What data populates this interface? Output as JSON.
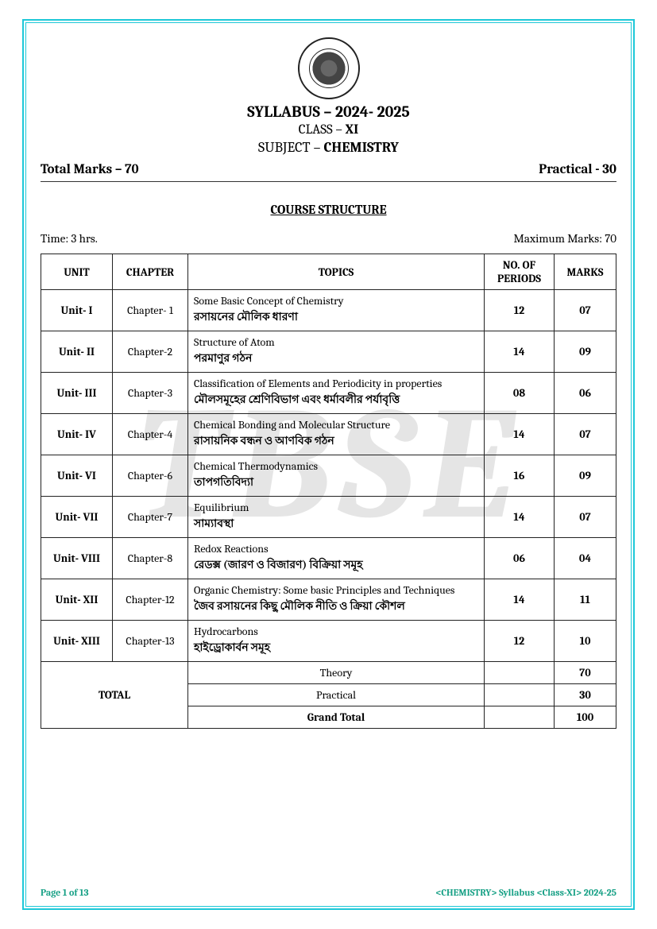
{
  "header": {
    "syllabus": "SYLLABUS – 2024- 2025",
    "class_prefix": "CLASS – ",
    "class_value": "XI",
    "subject_prefix": "SUBJECT – ",
    "subject_value": "CHEMISTRY"
  },
  "marks_row": {
    "total": "Total Marks – 70",
    "practical": "Practical - 30"
  },
  "course_title": "COURSE STRUCTURE",
  "time_row": {
    "time": "Time: 3 hrs.",
    "max": "Maximum Marks: 70"
  },
  "table": {
    "headers": {
      "unit": "UNIT",
      "chapter": "CHAPTER",
      "topics": "TOPICS",
      "periods": "NO. OF PERIODS",
      "marks": "MARKS"
    },
    "rows": [
      {
        "unit": "Unit- I",
        "chapter": "Chapter- 1",
        "topic_en": "Some Basic Concept of Chemistry",
        "topic_bn": "রসায়নের মৌলিক ধারণা",
        "periods": "12",
        "marks": "07"
      },
      {
        "unit": "Unit- II",
        "chapter": "Chapter-2",
        "topic_en": "Structure of Atom",
        "topic_bn": "পরমাণুর গঠন",
        "periods": "14",
        "marks": "09"
      },
      {
        "unit": "Unit- III",
        "chapter": "Chapter-3",
        "topic_en": "Classification of Elements and Periodicity in properties",
        "topic_bn": "মৌলসমূহের শ্রেণিবিভাগ এবং ধর্মাবলীর পর্যাবৃত্তি",
        "periods": "08",
        "marks": "06"
      },
      {
        "unit": "Unit- IV",
        "chapter": "Chapter-4",
        "topic_en": "Chemical Bonding and Molecular Structure",
        "topic_bn": "রাসায়নিক বন্ধন ও আণবিক গঠন",
        "periods": "14",
        "marks": "07"
      },
      {
        "unit": "Unit- VI",
        "chapter": "Chapter-6",
        "topic_en": "Chemical Thermodynamics",
        "topic_bn": "তাপগতিবিদ্যা",
        "periods": "16",
        "marks": "09"
      },
      {
        "unit": "Unit- VII",
        "chapter": "Chapter-7",
        "topic_en": "Equilibrium",
        "topic_bn": "সাম্যাবস্থা",
        "periods": "14",
        "marks": "07"
      },
      {
        "unit": "Unit- VIII",
        "chapter": "Chapter-8",
        "topic_en": "Redox Reactions",
        "topic_bn": "রেডক্স (জারণ ও বিজারণ) বিক্রিয়া সমূহ",
        "periods": "06",
        "marks": "04"
      },
      {
        "unit": "Unit- XII",
        "chapter": "Chapter-12",
        "topic_en": "Organic Chemistry: Some basic Principles and Techniques",
        "topic_bn": "জৈব রসায়নের কিছু মৌলিক নীতি ও ক্রিয়া কৌশল",
        "periods": "14",
        "marks": "11"
      },
      {
        "unit": "Unit- XIII",
        "chapter": "Chapter-13",
        "topic_en": "Hydrocarbons",
        "topic_bn": "হাইড্রোকার্বন সমূহ",
        "periods": "12",
        "marks": "10"
      }
    ],
    "totals": {
      "label": "TOTAL",
      "theory_label": "Theory",
      "theory_marks": "70",
      "practical_label": "Practical",
      "practical_marks": "30",
      "grand_label": "Grand Total",
      "grand_marks": "100"
    }
  },
  "footer": {
    "page": "Page 1 of 13",
    "right": "<CHEMISTRY> Syllabus <Class-XI> 2024-25"
  },
  "watermark": "TBSE",
  "colors": {
    "border": "#1ec8d8",
    "accent": "#16a085",
    "text": "#222222"
  }
}
